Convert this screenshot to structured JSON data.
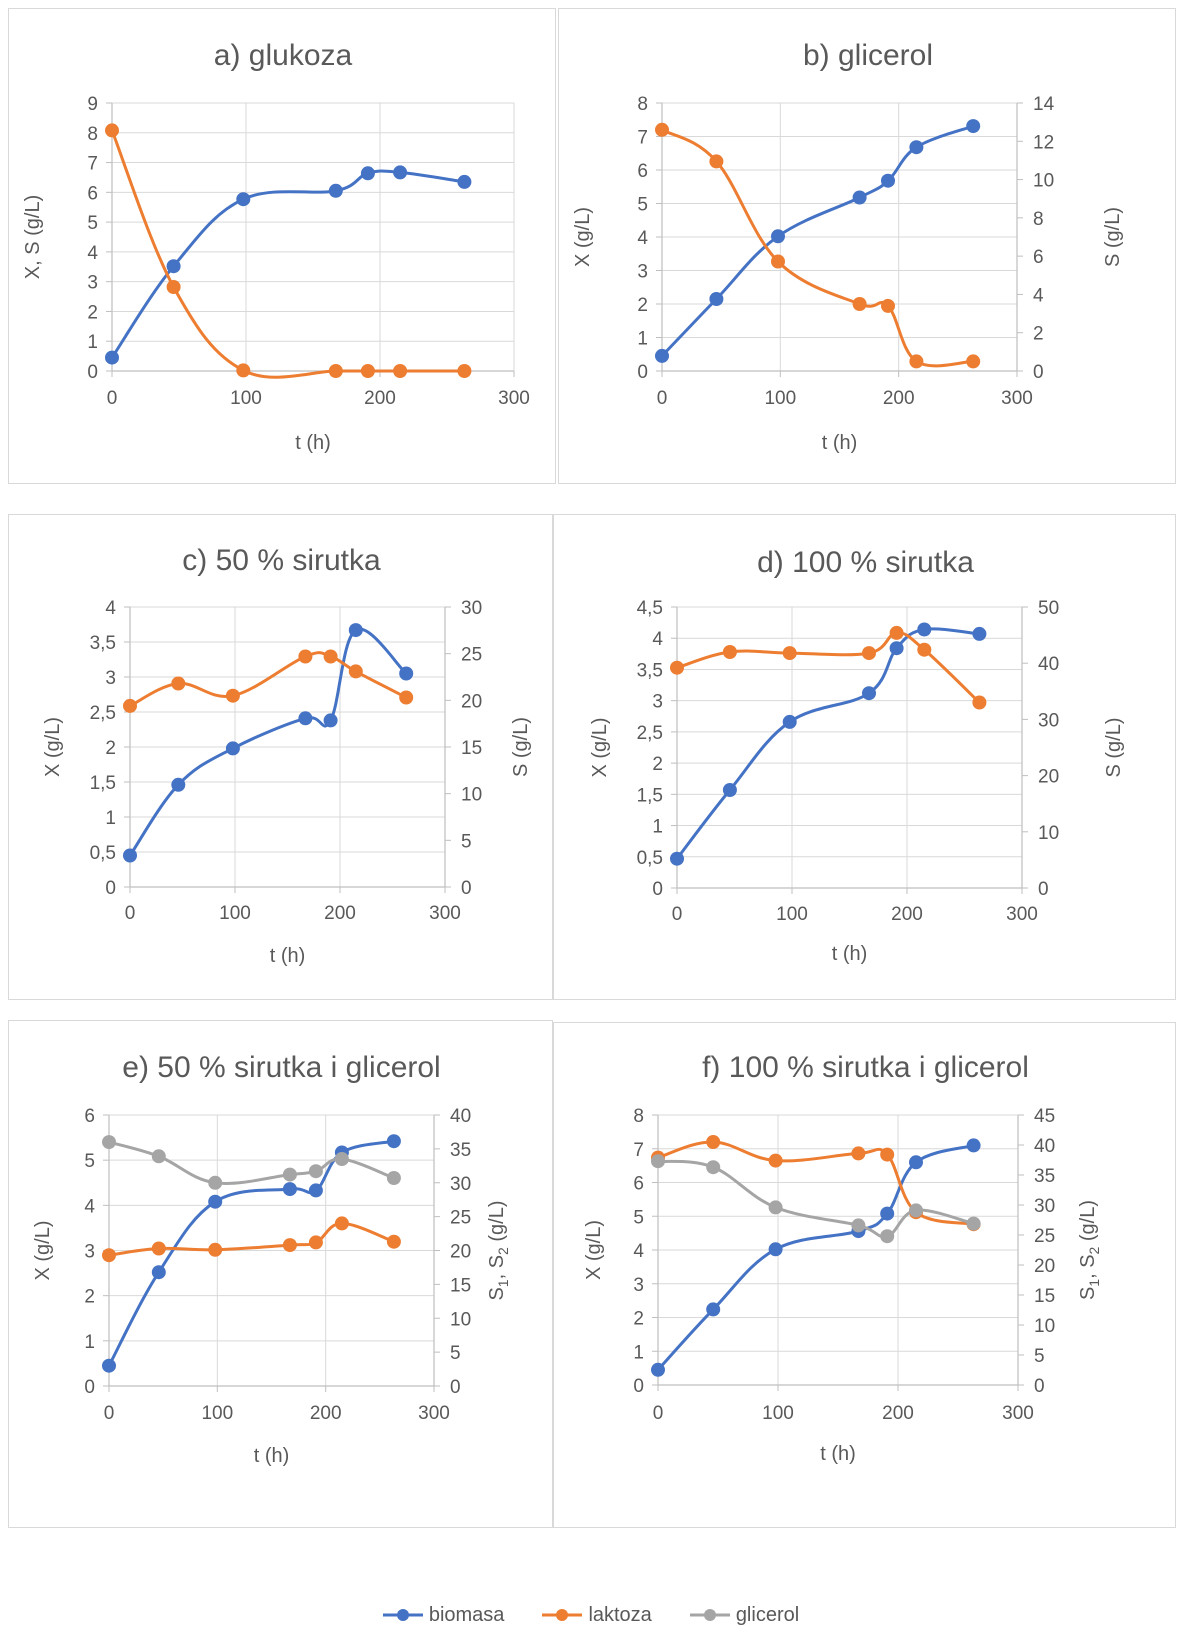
{
  "colors": {
    "biomasa": "#4472C4",
    "laktoza": "#ED7D31",
    "glicerol": "#A5A5A5",
    "axis": "#BFBFBF",
    "grid": "#D9D9D9",
    "text": "#595959"
  },
  "legend": [
    {
      "key": "biomasa",
      "label": "biomasa"
    },
    {
      "key": "laktoza",
      "label": "laktoza"
    },
    {
      "key": "glicerol",
      "label": "glicerol"
    }
  ],
  "chart_data": [
    {
      "type": "line",
      "title": "a) glukoza",
      "xlabel": "t (h)",
      "ylabel": "X, S (g/L)",
      "y2label": "",
      "xlim": [
        0,
        300
      ],
      "xticks": [
        0,
        100,
        200,
        300
      ],
      "ylim": [
        0,
        9
      ],
      "yticks": [
        0,
        1,
        2,
        3,
        4,
        5,
        6,
        7,
        8,
        9
      ],
      "grid": true,
      "series": [
        {
          "key": "biomasa",
          "axis": "left",
          "x": [
            0,
            46,
            98,
            167,
            191,
            215,
            263
          ],
          "y": [
            0.45,
            3.52,
            5.77,
            6.05,
            6.64,
            6.67,
            6.35
          ]
        },
        {
          "key": "laktoza",
          "axis": "left",
          "x": [
            0,
            46,
            98,
            167,
            191,
            215,
            263
          ],
          "y": [
            8.08,
            2.82,
            0.02,
            0.0,
            0.0,
            0.0,
            0.0
          ]
        }
      ]
    },
    {
      "type": "line",
      "title": "b) glicerol",
      "xlabel": "t (h)",
      "ylabel": "X (g/L)",
      "y2label": "S (g/L)",
      "xlim": [
        0,
        300
      ],
      "xticks": [
        0,
        100,
        200,
        300
      ],
      "ylim": [
        0,
        8
      ],
      "yticks": [
        0,
        1,
        2,
        3,
        4,
        5,
        6,
        7,
        8
      ],
      "y2lim": [
        0,
        14
      ],
      "y2ticks": [
        0,
        2,
        4,
        6,
        8,
        10,
        12,
        14
      ],
      "grid": true,
      "series": [
        {
          "key": "biomasa",
          "axis": "left",
          "x": [
            0,
            46,
            98,
            167,
            191,
            215,
            263
          ],
          "y": [
            0.45,
            2.15,
            4.02,
            5.18,
            5.68,
            6.68,
            7.31
          ]
        },
        {
          "key": "laktoza",
          "axis": "right",
          "x": [
            0,
            46,
            98,
            167,
            191,
            215,
            263
          ],
          "y": [
            12.6,
            10.95,
            5.72,
            3.5,
            3.4,
            0.5,
            0.5
          ]
        }
      ]
    },
    {
      "type": "line",
      "title": "c) 50 % sirutka",
      "xlabel": "t (h)",
      "ylabel": "X (g/L)",
      "y2label": "S (g/L)",
      "xlim": [
        0,
        300
      ],
      "xticks": [
        0,
        100,
        200,
        300
      ],
      "ylim": [
        0,
        4
      ],
      "yticks": [
        0,
        0.5,
        1,
        1.5,
        2,
        2.5,
        3,
        3.5,
        4
      ],
      "yticklabels": [
        "0",
        "0,5",
        "1",
        "1,5",
        "2",
        "2,5",
        "3",
        "3,5",
        "4"
      ],
      "y2lim": [
        0,
        30
      ],
      "y2ticks": [
        0,
        5,
        10,
        15,
        20,
        25,
        30
      ],
      "grid": true,
      "series": [
        {
          "key": "biomasa",
          "axis": "left",
          "x": [
            0,
            46,
            98,
            167,
            191,
            215,
            263
          ],
          "y": [
            0.45,
            1.46,
            1.98,
            2.41,
            2.38,
            3.67,
            3.05
          ]
        },
        {
          "key": "laktoza",
          "axis": "right",
          "x": [
            0,
            46,
            98,
            167,
            191,
            215,
            263
          ],
          "y": [
            19.4,
            21.8,
            20.5,
            24.7,
            24.7,
            23.1,
            20.3
          ]
        }
      ]
    },
    {
      "type": "line",
      "title": "d) 100 % sirutka",
      "xlabel": "t (h)",
      "ylabel": "X (g/L)",
      "y2label": "S (g/L)",
      "xlim": [
        0,
        300
      ],
      "xticks": [
        0,
        100,
        200,
        300
      ],
      "ylim": [
        0,
        4.5
      ],
      "yticks": [
        0,
        0.5,
        1,
        1.5,
        2,
        2.5,
        3,
        3.5,
        4,
        4.5
      ],
      "yticklabels": [
        "0",
        "0,5",
        "1",
        "1,5",
        "2",
        "2,5",
        "3",
        "3,5",
        "4",
        "4,5"
      ],
      "y2lim": [
        0,
        50
      ],
      "y2ticks": [
        0,
        10,
        20,
        30,
        40,
        50
      ],
      "grid": true,
      "series": [
        {
          "key": "biomasa",
          "axis": "left",
          "x": [
            0,
            46,
            98,
            167,
            191,
            215,
            263
          ],
          "y": [
            0.47,
            1.57,
            2.66,
            3.12,
            3.84,
            4.14,
            4.07
          ]
        },
        {
          "key": "laktoza",
          "axis": "right",
          "x": [
            0,
            46,
            98,
            167,
            191,
            215,
            263
          ],
          "y": [
            39.2,
            42.0,
            41.8,
            41.8,
            45.4,
            42.4,
            33.0
          ]
        }
      ]
    },
    {
      "type": "line",
      "title": "e) 50 % sirutka i glicerol",
      "xlabel": "t (h)",
      "ylabel": "X (g/L)",
      "y2label": "S1, S2 (g/L)",
      "xlim": [
        0,
        300
      ],
      "xticks": [
        0,
        100,
        200,
        300
      ],
      "ylim": [
        0,
        6
      ],
      "yticks": [
        0,
        1,
        2,
        3,
        4,
        5,
        6
      ],
      "y2lim": [
        0,
        40
      ],
      "y2ticks": [
        0,
        5,
        10,
        15,
        20,
        25,
        30,
        35,
        40
      ],
      "grid": true,
      "series": [
        {
          "key": "biomasa",
          "axis": "left",
          "x": [
            0,
            46,
            98,
            167,
            191,
            215,
            263
          ],
          "y": [
            0.45,
            2.52,
            4.08,
            4.36,
            4.33,
            5.17,
            5.42
          ]
        },
        {
          "key": "laktoza",
          "axis": "right",
          "x": [
            0,
            46,
            98,
            167,
            191,
            215,
            263
          ],
          "y": [
            19.3,
            20.3,
            20.1,
            20.8,
            21.2,
            24.0,
            21.3
          ]
        },
        {
          "key": "glicerol",
          "axis": "right",
          "x": [
            0,
            46,
            98,
            167,
            191,
            215,
            263
          ],
          "y": [
            36.0,
            33.9,
            30.0,
            31.2,
            31.7,
            33.5,
            30.7
          ]
        }
      ]
    },
    {
      "type": "line",
      "title": "f) 100 % sirutka i glicerol",
      "xlabel": "t (h)",
      "ylabel": "X (g/L)",
      "y2label": "S1, S2 (g/L)",
      "xlim": [
        0,
        300
      ],
      "xticks": [
        0,
        100,
        200,
        300
      ],
      "ylim": [
        0,
        8
      ],
      "yticks": [
        0,
        1,
        2,
        3,
        4,
        5,
        6,
        7,
        8
      ],
      "y2lim": [
        0,
        45
      ],
      "y2ticks": [
        0,
        5,
        10,
        15,
        20,
        25,
        30,
        35,
        40,
        45
      ],
      "grid": true,
      "series": [
        {
          "key": "biomasa",
          "axis": "left",
          "x": [
            0,
            46,
            98,
            167,
            191,
            215,
            263
          ],
          "y": [
            0.45,
            2.24,
            4.02,
            4.56,
            5.08,
            6.6,
            7.1
          ]
        },
        {
          "key": "laktoza",
          "axis": "right",
          "x": [
            0,
            46,
            98,
            167,
            191,
            215,
            263
          ],
          "y": [
            37.9,
            40.5,
            37.4,
            38.6,
            38.4,
            28.8,
            26.8
          ]
        },
        {
          "key": "glicerol",
          "axis": "right",
          "x": [
            0,
            46,
            98,
            167,
            191,
            215,
            263
          ],
          "y": [
            37.3,
            36.3,
            29.6,
            26.6,
            24.8,
            29.1,
            26.9
          ]
        }
      ]
    }
  ]
}
